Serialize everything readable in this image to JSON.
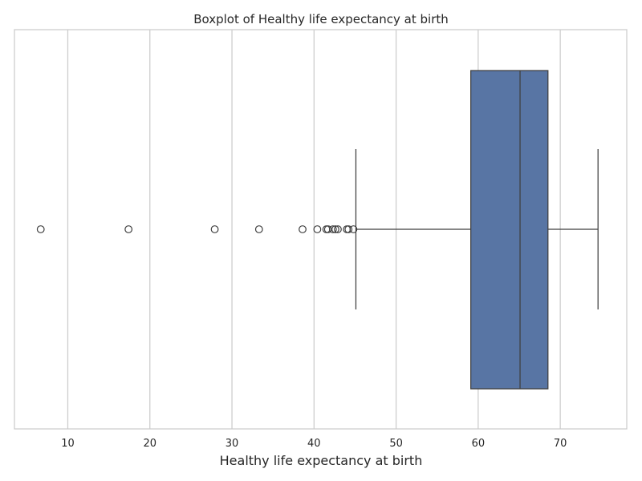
{
  "chart_data": {
    "type": "boxplot",
    "orientation": "horizontal",
    "title": "Boxplot of Healthy life expectancy at birth",
    "xlabel": "Healthy life expectancy at birth",
    "ylabel": "",
    "xlim": [
      3.5,
      78.1
    ],
    "xticks": [
      10,
      20,
      30,
      40,
      50,
      60,
      70
    ],
    "grid": true,
    "box": {
      "whisker_low": 45.1,
      "q1": 59.1,
      "median": 65.1,
      "q3": 68.5,
      "whisker_high": 74.6,
      "color": "#5875a4"
    },
    "outliers": [
      6.7,
      17.4,
      27.9,
      33.3,
      38.6,
      40.4,
      41.5,
      41.7,
      42.3,
      42.6,
      42.9,
      44.0,
      44.2,
      44.8
    ]
  }
}
